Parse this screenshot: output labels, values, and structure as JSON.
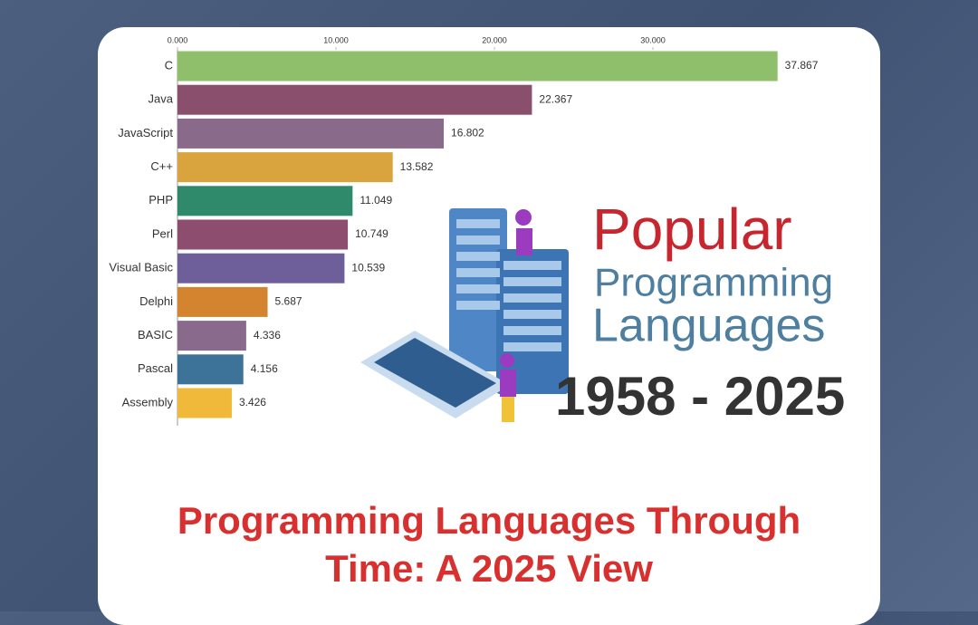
{
  "chart_data": {
    "type": "bar",
    "orientation": "horizontal",
    "categories": [
      "C",
      "Java",
      "JavaScript",
      "C++",
      "PHP",
      "Perl",
      "Visual Basic",
      "Delphi",
      "BASIC",
      "Pascal",
      "Assembly"
    ],
    "values": [
      37.867,
      22.367,
      16.802,
      13.582,
      11.049,
      10.749,
      10.539,
      5.687,
      4.336,
      4.156,
      3.426
    ],
    "colors": [
      "#8fbf6a",
      "#8b4f6e",
      "#8a6a8a",
      "#d9a33e",
      "#2e8a6a",
      "#8c4d6e",
      "#6e5e9a",
      "#d4842e",
      "#8a6a8c",
      "#3d7398",
      "#f0b93a"
    ],
    "xlim": [
      0,
      40
    ],
    "xticks": [
      {
        "value": 0,
        "label": "0.000"
      },
      {
        "value": 10,
        "label": "10.000"
      },
      {
        "value": 20,
        "label": "20.000"
      },
      {
        "value": 30,
        "label": "30.000"
      }
    ]
  },
  "illustration": {
    "headline": "Popular",
    "line1": "Programming",
    "line2": "Languages",
    "years": "1958 - 2025"
  },
  "caption": "Programming Languages Through Time: A 2025 View"
}
